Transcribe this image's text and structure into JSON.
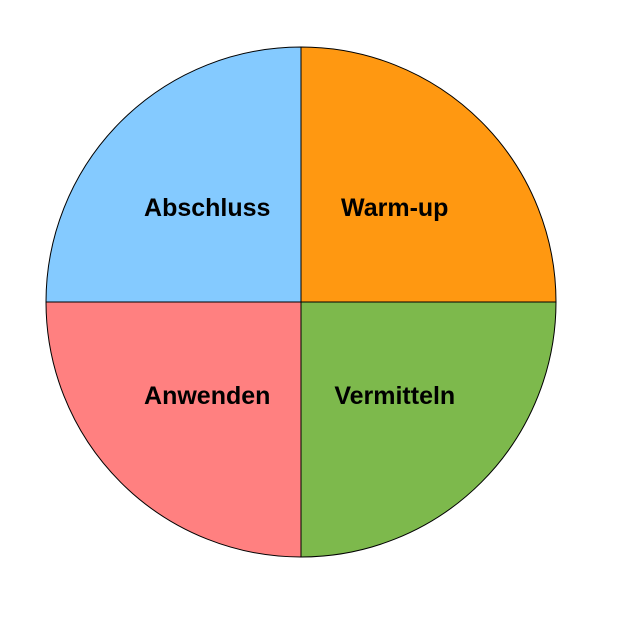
{
  "chart_data": {
    "type": "pie",
    "title": "",
    "slices": [
      {
        "label": "Warm-up",
        "value": 25,
        "color": "#ff9811"
      },
      {
        "label": "Vermitteln",
        "value": 25,
        "color": "#7db94c"
      },
      {
        "label": "Anwenden",
        "value": 25,
        "color": "#ff8080"
      },
      {
        "label": "Abschluss",
        "value": 25,
        "color": "#84caff"
      }
    ],
    "legend": "none",
    "start_angle_deg": 0,
    "direction": "clockwise"
  }
}
